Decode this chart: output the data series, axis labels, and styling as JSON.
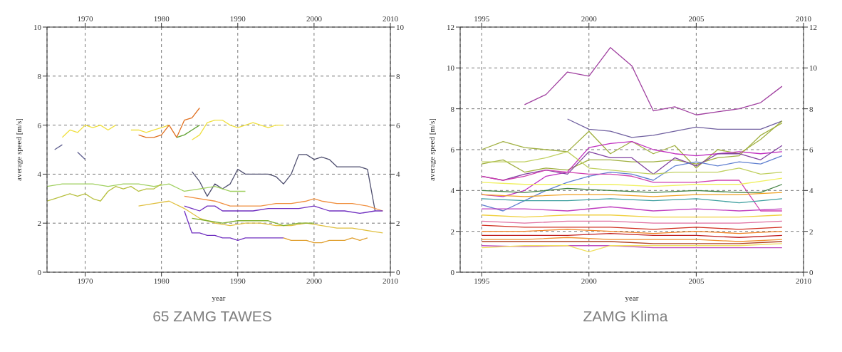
{
  "chart_data": [
    {
      "type": "line",
      "xlabel": "year",
      "ylabel": "average speed [m/s]",
      "xlim": [
        1965,
        2010
      ],
      "xticks": [
        1970,
        1980,
        1990,
        2000,
        2010
      ],
      "x2lim": [
        1965,
        2010
      ],
      "x2ticks": [
        1970,
        1980,
        1990,
        2000,
        2010
      ],
      "ylim": [
        0,
        10
      ],
      "yticks": [
        0,
        2,
        4,
        6,
        8,
        10
      ],
      "y2lim": [
        0,
        10
      ],
      "y2ticks": [
        0,
        2,
        4,
        6,
        8,
        10
      ],
      "grid": true,
      "annotations": [
        "65 ZAMG TAWES"
      ],
      "series": [
        {
          "color": "#f0e040",
          "x": [
            1967,
            1968,
            1969,
            1970,
            1971,
            1972,
            1973,
            1974
          ],
          "values": [
            5.5,
            5.8,
            5.7,
            6.0,
            5.9,
            6.0,
            5.8,
            6.0
          ]
        },
        {
          "color": "#f0e040",
          "x": [
            1976,
            1977,
            1978,
            1979,
            1980,
            1981
          ],
          "values": [
            5.8,
            5.8,
            5.7,
            5.8,
            5.9,
            6.0
          ]
        },
        {
          "color": "#e07020",
          "x": [
            1977,
            1978,
            1979,
            1980,
            1981,
            1982,
            1983,
            1984,
            1985
          ],
          "values": [
            5.6,
            5.5,
            5.5,
            5.6,
            6.0,
            5.5,
            6.2,
            6.3,
            6.7
          ]
        },
        {
          "color": "#60a030",
          "x": [
            1982,
            1983,
            1984,
            1985
          ],
          "values": [
            5.5,
            5.6,
            5.8,
            6.0
          ]
        },
        {
          "color": "#f0e040",
          "x": [
            1984,
            1985,
            1986,
            1987,
            1988,
            1989,
            1990,
            1991,
            1992,
            1993,
            1994,
            1995,
            1996
          ],
          "values": [
            5.4,
            5.6,
            6.1,
            6.2,
            6.2,
            6.0,
            5.9,
            6.0,
            6.1,
            6.0,
            5.9,
            6.0,
            6.0
          ]
        },
        {
          "color": "#606090",
          "x": [
            1966,
            1967
          ],
          "values": [
            5.0,
            5.2
          ]
        },
        {
          "color": "#606090",
          "x": [
            1969,
            1970
          ],
          "values": [
            4.9,
            4.6
          ]
        },
        {
          "color": "#505070",
          "x": [
            1984,
            1985,
            1986,
            1987,
            1988,
            1989,
            1990,
            1991,
            1992,
            1993,
            1994,
            1995,
            1996,
            1997,
            1998,
            1999,
            2000,
            2001,
            2002,
            2003,
            2004,
            2005,
            2006,
            2007,
            2008
          ],
          "values": [
            4.1,
            3.7,
            3.1,
            3.6,
            3.4,
            3.6,
            4.2,
            4.0,
            4.0,
            4.0,
            4.0,
            3.9,
            3.6,
            4.0,
            4.8,
            4.8,
            4.6,
            4.7,
            4.6,
            4.3,
            4.3,
            4.3,
            4.3,
            4.2,
            2.5
          ]
        },
        {
          "color": "#a0d060",
          "x": [
            1965,
            1967,
            1969,
            1971,
            1973,
            1975,
            1977,
            1979,
            1981,
            1983,
            1985,
            1987,
            1989,
            1991
          ],
          "values": [
            3.5,
            3.6,
            3.6,
            3.6,
            3.5,
            3.6,
            3.6,
            3.5,
            3.6,
            3.3,
            3.4,
            3.5,
            3.3,
            3.3
          ]
        },
        {
          "color": "#b8c040",
          "x": [
            1965,
            1966,
            1967,
            1968,
            1969,
            1970,
            1971,
            1972,
            1973,
            1974,
            1975,
            1976,
            1977,
            1978,
            1979,
            1980
          ],
          "values": [
            2.9,
            3.0,
            3.1,
            3.2,
            3.1,
            3.2,
            3.0,
            2.9,
            3.3,
            3.5,
            3.4,
            3.5,
            3.3,
            3.4,
            3.4,
            3.6
          ]
        },
        {
          "color": "#f09040",
          "x": [
            1983,
            1985,
            1987,
            1989,
            1991,
            1993,
            1995,
            1997,
            1999,
            2000,
            2001,
            2003,
            2005,
            2007,
            2009
          ],
          "values": [
            3.1,
            3.0,
            2.9,
            2.7,
            2.7,
            2.7,
            2.8,
            2.8,
            2.9,
            3.0,
            2.9,
            2.8,
            2.8,
            2.7,
            2.5
          ]
        },
        {
          "color": "#7030c0",
          "x": [
            1983,
            1984,
            1985,
            1986,
            1987,
            1988,
            1990,
            1992,
            1994,
            1996,
            1998,
            2000,
            2002,
            2004,
            2006,
            2008,
            2009
          ],
          "values": [
            2.7,
            2.6,
            2.5,
            2.7,
            2.7,
            2.5,
            2.5,
            2.5,
            2.6,
            2.6,
            2.6,
            2.7,
            2.5,
            2.5,
            2.4,
            2.5,
            2.5
          ]
        },
        {
          "color": "#7030c0",
          "x": [
            1983,
            1984,
            1985,
            1986,
            1987,
            1988,
            1989,
            1990,
            1991,
            1992,
            1993,
            1994,
            1995,
            1996
          ],
          "values": [
            2.5,
            1.6,
            1.6,
            1.5,
            1.5,
            1.4,
            1.4,
            1.3,
            1.4,
            1.4,
            1.4,
            1.4,
            1.4,
            1.4
          ]
        },
        {
          "color": "#e0c040",
          "x": [
            1977,
            1979,
            1981,
            1983,
            1985,
            1987,
            1989,
            1991,
            1993,
            1995,
            1997,
            1999,
            2001,
            2003,
            2005,
            2007,
            2009
          ],
          "values": [
            2.7,
            2.8,
            2.9,
            2.6,
            2.2,
            2.0,
            1.9,
            2.0,
            2.0,
            1.9,
            1.9,
            2.0,
            1.9,
            1.8,
            1.8,
            1.7,
            1.6
          ]
        },
        {
          "color": "#80b030",
          "x": [
            1984,
            1986,
            1988,
            1990,
            1992,
            1994,
            1996,
            1998,
            2000
          ],
          "values": [
            2.2,
            2.1,
            2.0,
            2.1,
            2.1,
            2.1,
            1.9,
            2.0,
            2.0
          ]
        },
        {
          "color": "#e0a030",
          "x": [
            1996,
            1997,
            1998,
            1999,
            2000,
            2001,
            2002,
            2003,
            2004,
            2005,
            2006,
            2007
          ],
          "values": [
            1.4,
            1.3,
            1.3,
            1.3,
            1.2,
            1.2,
            1.3,
            1.3,
            1.3,
            1.4,
            1.3,
            1.4
          ]
        }
      ]
    },
    {
      "type": "line",
      "xlabel": "year",
      "ylabel": "average speed [m/s]",
      "xlim": [
        1994,
        2010
      ],
      "xticks": [
        1995,
        2000,
        2005,
        2010
      ],
      "x2lim": [
        1994,
        2010
      ],
      "x2ticks": [
        1995,
        2000,
        2005,
        2010
      ],
      "ylim": [
        0,
        12
      ],
      "yticks": [
        0,
        2,
        4,
        6,
        8,
        10,
        12
      ],
      "y2lim": [
        0,
        12
      ],
      "y2ticks": [
        0,
        2,
        4,
        6,
        8,
        10,
        12
      ],
      "grid": true,
      "annotations": [
        "ZAMG Klima"
      ],
      "series": [
        {
          "color": "#a040a0",
          "x": [
            1997,
            1998,
            1999,
            2000,
            2001,
            2002,
            2003,
            2004,
            2005,
            2006,
            2007,
            2008,
            2009
          ],
          "values": [
            8.2,
            8.7,
            9.8,
            9.6,
            11.0,
            10.1,
            7.9,
            8.1,
            7.7,
            7.85,
            8.0,
            8.3,
            9.1
          ]
        },
        {
          "color": "#7060a0",
          "x": [
            1999,
            2000,
            2001,
            2002,
            2003,
            2004,
            2005,
            2006,
            2007,
            2008,
            2009
          ],
          "values": [
            7.5,
            7.0,
            6.9,
            6.6,
            6.7,
            6.9,
            7.1,
            7.0,
            7.0,
            7.0,
            7.4
          ]
        },
        {
          "color": "#a0b040",
          "x": [
            1995,
            1996,
            1997,
            1998,
            1999,
            2000,
            2001,
            2002,
            2003,
            2004,
            2005,
            2006,
            2007,
            2008,
            2009
          ],
          "values": [
            6.0,
            6.4,
            6.1,
            6.0,
            5.9,
            6.9,
            5.8,
            6.4,
            5.8,
            6.2,
            5.1,
            6.0,
            5.8,
            6.5,
            7.4
          ]
        },
        {
          "color": "#a0b040",
          "x": [
            1995,
            1996,
            1997,
            1998,
            1999,
            2000,
            2001,
            2002,
            2003,
            2004,
            2005,
            2006,
            2007,
            2008,
            2009
          ],
          "values": [
            5.3,
            5.5,
            4.9,
            5.1,
            5.0,
            5.5,
            5.5,
            5.4,
            5.4,
            5.5,
            5.3,
            5.6,
            5.7,
            6.7,
            7.3
          ]
        },
        {
          "color": "#c030c0",
          "x": [
            1995,
            1996,
            1997,
            1998,
            1999,
            2000,
            2001,
            2002,
            2003,
            2004,
            2005,
            2006,
            2007,
            2008,
            2009
          ],
          "values": [
            3.8,
            3.7,
            4.0,
            4.7,
            4.9,
            6.1,
            6.3,
            6.4,
            6.0,
            5.8,
            5.7,
            5.8,
            5.9,
            5.8,
            5.9
          ]
        },
        {
          "color": "#8040a0",
          "x": [
            1995,
            1996,
            1997,
            1998,
            1999,
            2000,
            2001,
            2002,
            2003,
            2004,
            2005,
            2006,
            2007,
            2008,
            2009
          ],
          "values": [
            4.7,
            4.5,
            4.8,
            5.0,
            4.8,
            5.9,
            5.6,
            5.6,
            4.8,
            5.6,
            5.2,
            5.8,
            5.8,
            5.5,
            6.2
          ]
        },
        {
          "color": "#6080d0",
          "x": [
            1995,
            1996,
            1997,
            1998,
            1999,
            2000,
            2001,
            2002,
            2003,
            2004,
            2005,
            2006,
            2007,
            2008,
            2009
          ],
          "values": [
            3.3,
            3.0,
            3.5,
            4.0,
            4.4,
            4.7,
            4.9,
            4.8,
            4.5,
            5.2,
            5.4,
            5.2,
            5.4,
            5.3,
            5.7
          ]
        },
        {
          "color": "#c0d060",
          "x": [
            1995,
            1996,
            1997,
            1998,
            1999,
            2000,
            2001,
            2002,
            2003,
            2004,
            2005,
            2006,
            2007,
            2008,
            2009
          ],
          "values": [
            5.4,
            5.4,
            5.4,
            5.6,
            5.9,
            5.1,
            5.0,
            4.9,
            4.8,
            4.9,
            4.9,
            4.9,
            5.1,
            4.8,
            4.9
          ]
        },
        {
          "color": "#d040b0",
          "x": [
            1995,
            1996,
            1997,
            1998,
            1999,
            2000,
            2001,
            2002,
            2003,
            2004,
            2005,
            2006,
            2007,
            2008,
            2009
          ],
          "values": [
            4.7,
            4.5,
            4.7,
            5.0,
            4.9,
            4.8,
            4.8,
            4.7,
            4.4,
            4.4,
            4.4,
            4.5,
            4.5,
            3.0,
            3.0
          ]
        },
        {
          "color": "#f0f060",
          "x": [
            1995,
            1997,
            1999,
            2001,
            2003,
            2005,
            2007,
            2009
          ],
          "values": [
            4.4,
            4.3,
            4.3,
            4.3,
            4.2,
            4.3,
            4.3,
            4.6
          ]
        },
        {
          "color": "#408040",
          "x": [
            1995,
            1997,
            1999,
            2001,
            2003,
            2005,
            2007,
            2008,
            2009
          ],
          "values": [
            4.0,
            3.9,
            4.1,
            4.0,
            3.9,
            4.0,
            3.9,
            3.9,
            4.3
          ]
        },
        {
          "color": "#f0a020",
          "x": [
            1995,
            1997,
            1999,
            2001,
            2003,
            2005,
            2007,
            2009
          ],
          "values": [
            3.8,
            3.7,
            3.8,
            3.8,
            3.7,
            3.8,
            3.8,
            3.9
          ]
        },
        {
          "color": "#40a0a0",
          "x": [
            1995,
            1997,
            1999,
            2001,
            2003,
            2005,
            2007,
            2009
          ],
          "values": [
            3.6,
            3.5,
            3.5,
            3.6,
            3.5,
            3.6,
            3.4,
            3.6
          ]
        },
        {
          "color": "#c040c0",
          "x": [
            1995,
            1997,
            1999,
            2001,
            2003,
            2005,
            2007,
            2009
          ],
          "values": [
            3.1,
            3.1,
            3.0,
            3.2,
            3.0,
            3.1,
            3.0,
            3.1
          ]
        },
        {
          "color": "#f0d040",
          "x": [
            1995,
            1997,
            1999,
            2001,
            2003,
            2005,
            2007,
            2009
          ],
          "values": [
            2.8,
            2.7,
            2.8,
            2.8,
            2.7,
            2.7,
            2.7,
            2.8
          ]
        },
        {
          "color": "#e070a0",
          "x": [
            1995,
            1997,
            1999,
            2001,
            2003,
            2005,
            2007,
            2009
          ],
          "values": [
            2.5,
            2.4,
            2.5,
            2.5,
            2.4,
            2.4,
            2.4,
            2.5
          ]
        },
        {
          "color": "#d03020",
          "x": [
            1995,
            1997,
            1999,
            2001,
            2003,
            2005,
            2007,
            2009
          ],
          "values": [
            2.3,
            2.2,
            2.2,
            2.2,
            2.1,
            2.2,
            2.1,
            2.2
          ]
        },
        {
          "color": "#f08020",
          "x": [
            1995,
            1997,
            1999,
            2001,
            2003,
            2005,
            2007,
            2009
          ],
          "values": [
            2.0,
            2.0,
            2.1,
            2.0,
            1.9,
            2.0,
            1.9,
            2.0
          ]
        },
        {
          "color": "#c02020",
          "x": [
            1995,
            1997,
            1999,
            2001,
            2003,
            2005,
            2007,
            2009
          ],
          "values": [
            1.8,
            1.8,
            1.8,
            1.9,
            1.8,
            1.8,
            1.7,
            1.8
          ]
        },
        {
          "color": "#f09030",
          "x": [
            1995,
            1997,
            1999,
            2001,
            2003,
            2005,
            2007,
            2009
          ],
          "values": [
            1.6,
            1.6,
            1.7,
            1.6,
            1.6,
            1.6,
            1.5,
            1.6
          ]
        },
        {
          "color": "#b04020",
          "x": [
            1995,
            1997,
            1999,
            2001,
            2003,
            2005,
            2007,
            2009
          ],
          "values": [
            1.5,
            1.5,
            1.5,
            1.5,
            1.4,
            1.4,
            1.4,
            1.5
          ]
        },
        {
          "color": "#c050c0",
          "x": [
            1995,
            1997,
            1999,
            2001,
            2003,
            2005,
            2007,
            2009
          ],
          "values": [
            1.3,
            1.25,
            1.3,
            1.3,
            1.2,
            1.2,
            1.2,
            1.2
          ]
        },
        {
          "color": "#f0e060",
          "x": [
            1995,
            1997,
            1999,
            2000,
            2001,
            2003,
            2005,
            2007,
            2009
          ],
          "values": [
            1.2,
            1.3,
            1.3,
            1.0,
            1.3,
            1.3,
            1.3,
            1.3,
            1.4
          ]
        }
      ]
    }
  ]
}
